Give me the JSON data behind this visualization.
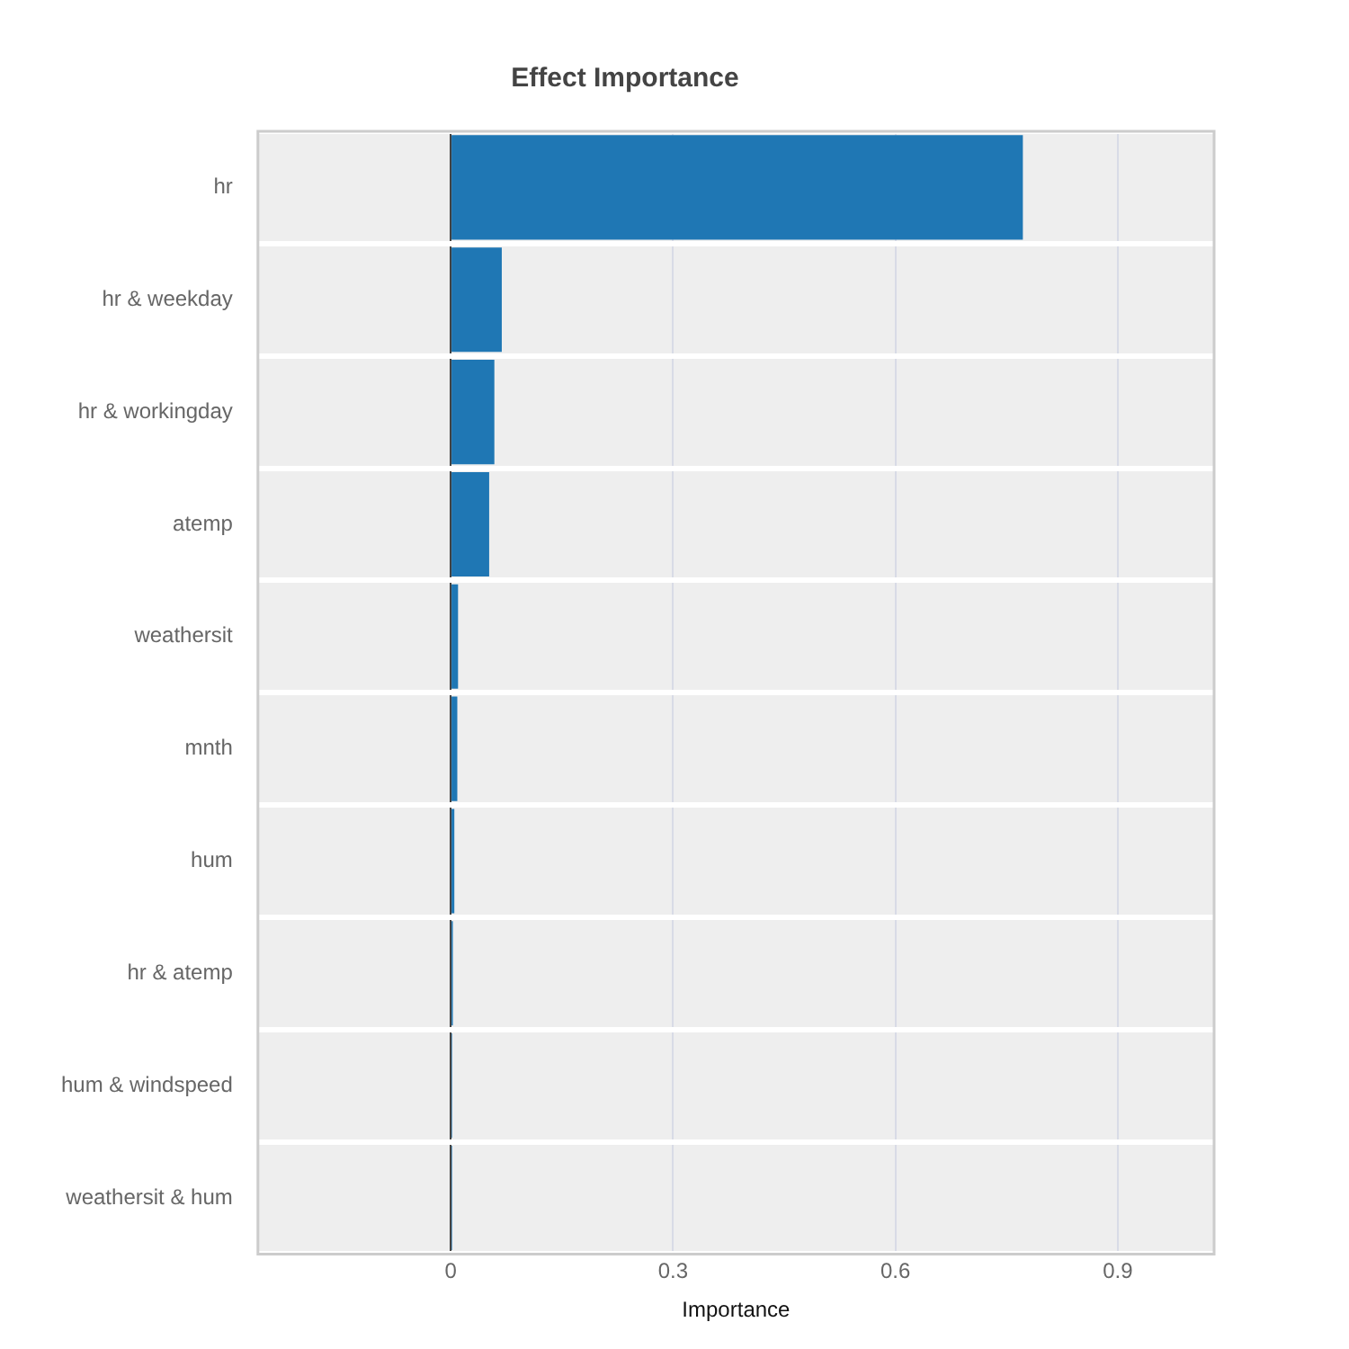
{
  "chart_data": {
    "type": "bar",
    "title": "Effect Importance",
    "xlabel": "Importance",
    "orientation": "horizontal",
    "categories": [
      "hr",
      "hr & weekday",
      "hr & workingday",
      "atemp",
      "weathersit",
      "mnth",
      "hum",
      "hr & atemp",
      "hum & windspeed",
      "weathersit & hum"
    ],
    "values": [
      0.772,
      0.069,
      0.059,
      0.052,
      0.01,
      0.009,
      0.005,
      0.003,
      0.002,
      0.002
    ],
    "color": "#1f77b4",
    "xlim": [
      -0.26,
      1.03
    ],
    "xticks": [
      0,
      0.3,
      0.6,
      0.9
    ],
    "grid": true,
    "legend": false
  }
}
